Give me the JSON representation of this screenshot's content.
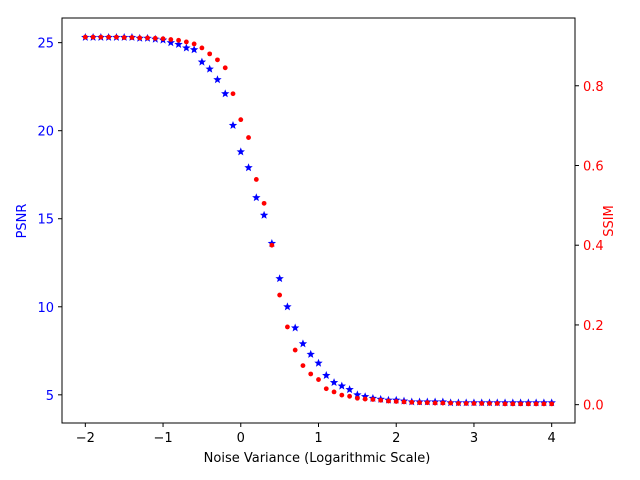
{
  "chart_data": {
    "type": "scatter",
    "title": "",
    "xlabel": "Noise Variance (Logarithmic Scale)",
    "ylabel_left": "PSNR",
    "ylabel_right": "SSIM",
    "xlim": [
      -2.3,
      4.3
    ],
    "ylim_left": [
      3.4,
      26.4
    ],
    "ylim_right": [
      -0.046,
      0.97
    ],
    "x_ticks": [
      -2,
      -1,
      0,
      1,
      2,
      3,
      4
    ],
    "y_ticks_left": [
      5,
      10,
      15,
      20,
      25
    ],
    "y_ticks_right": [
      0.0,
      0.2,
      0.4,
      0.6,
      0.8
    ],
    "grid": false,
    "legend": "none",
    "colors": {
      "psnr": "#0000ff",
      "ssim": "#ff0000"
    },
    "series": [
      {
        "axis": "left",
        "marker": "star",
        "color": "#0000ff",
        "x": [
          -2.0,
          -1.9,
          -1.8,
          -1.7,
          -1.6,
          -1.5,
          -1.4,
          -1.3,
          -1.2,
          -1.1,
          -1.0,
          -0.9,
          -0.8,
          -0.7,
          -0.6,
          -0.5,
          -0.4,
          -0.3,
          -0.2,
          -0.1,
          0.0,
          0.1,
          0.2,
          0.3,
          0.4,
          0.5,
          0.6,
          0.7,
          0.8,
          0.9,
          1.0,
          1.1,
          1.2,
          1.3,
          1.4,
          1.5,
          1.6,
          1.7,
          1.8,
          1.9,
          2.0,
          2.1,
          2.2,
          2.3,
          2.4,
          2.5,
          2.6,
          2.7,
          2.8,
          2.9,
          3.0,
          3.1,
          3.2,
          3.3,
          3.4,
          3.5,
          3.6,
          3.7,
          3.8,
          3.9,
          4.0
        ],
        "values": [
          25.3,
          25.3,
          25.3,
          25.3,
          25.3,
          25.3,
          25.3,
          25.25,
          25.25,
          25.2,
          25.15,
          25.0,
          24.9,
          24.7,
          24.6,
          23.9,
          23.5,
          22.9,
          22.1,
          20.3,
          18.8,
          17.9,
          16.2,
          15.2,
          13.6,
          11.6,
          10.0,
          8.8,
          7.9,
          7.3,
          6.8,
          6.1,
          5.7,
          5.5,
          5.3,
          5.0,
          4.9,
          4.8,
          4.75,
          4.7,
          4.7,
          4.65,
          4.6,
          4.6,
          4.6,
          4.6,
          4.6,
          4.55,
          4.55,
          4.55,
          4.55,
          4.55,
          4.55,
          4.55,
          4.55,
          4.55,
          4.55,
          4.55,
          4.55,
          4.55,
          4.55
        ]
      },
      {
        "axis": "right",
        "marker": "dot",
        "color": "#ff0000",
        "x": [
          -2.0,
          -1.9,
          -1.8,
          -1.7,
          -1.6,
          -1.5,
          -1.4,
          -1.3,
          -1.2,
          -1.1,
          -1.0,
          -0.9,
          -0.8,
          -0.7,
          -0.6,
          -0.5,
          -0.4,
          -0.3,
          -0.2,
          -0.1,
          0.0,
          0.1,
          0.2,
          0.3,
          0.4,
          0.5,
          0.6,
          0.7,
          0.8,
          0.9,
          1.0,
          1.1,
          1.2,
          1.3,
          1.4,
          1.5,
          1.6,
          1.7,
          1.8,
          1.9,
          2.0,
          2.1,
          2.2,
          2.3,
          2.4,
          2.5,
          2.6,
          2.7,
          2.8,
          2.9,
          3.0,
          3.1,
          3.2,
          3.3,
          3.4,
          3.5,
          3.6,
          3.7,
          3.8,
          3.9,
          4.0
        ],
        "values": [
          0.922,
          0.922,
          0.922,
          0.922,
          0.922,
          0.921,
          0.921,
          0.92,
          0.92,
          0.919,
          0.918,
          0.916,
          0.914,
          0.91,
          0.905,
          0.895,
          0.88,
          0.865,
          0.845,
          0.78,
          0.715,
          0.67,
          0.565,
          0.505,
          0.4,
          0.275,
          0.195,
          0.137,
          0.098,
          0.077,
          0.063,
          0.04,
          0.032,
          0.024,
          0.021,
          0.016,
          0.014,
          0.013,
          0.011,
          0.009,
          0.008,
          0.007,
          0.006,
          0.005,
          0.005,
          0.004,
          0.004,
          0.004,
          0.003,
          0.003,
          0.003,
          0.003,
          0.003,
          0.003,
          0.002,
          0.002,
          0.002,
          0.002,
          0.002,
          0.002,
          0.002
        ]
      }
    ]
  }
}
